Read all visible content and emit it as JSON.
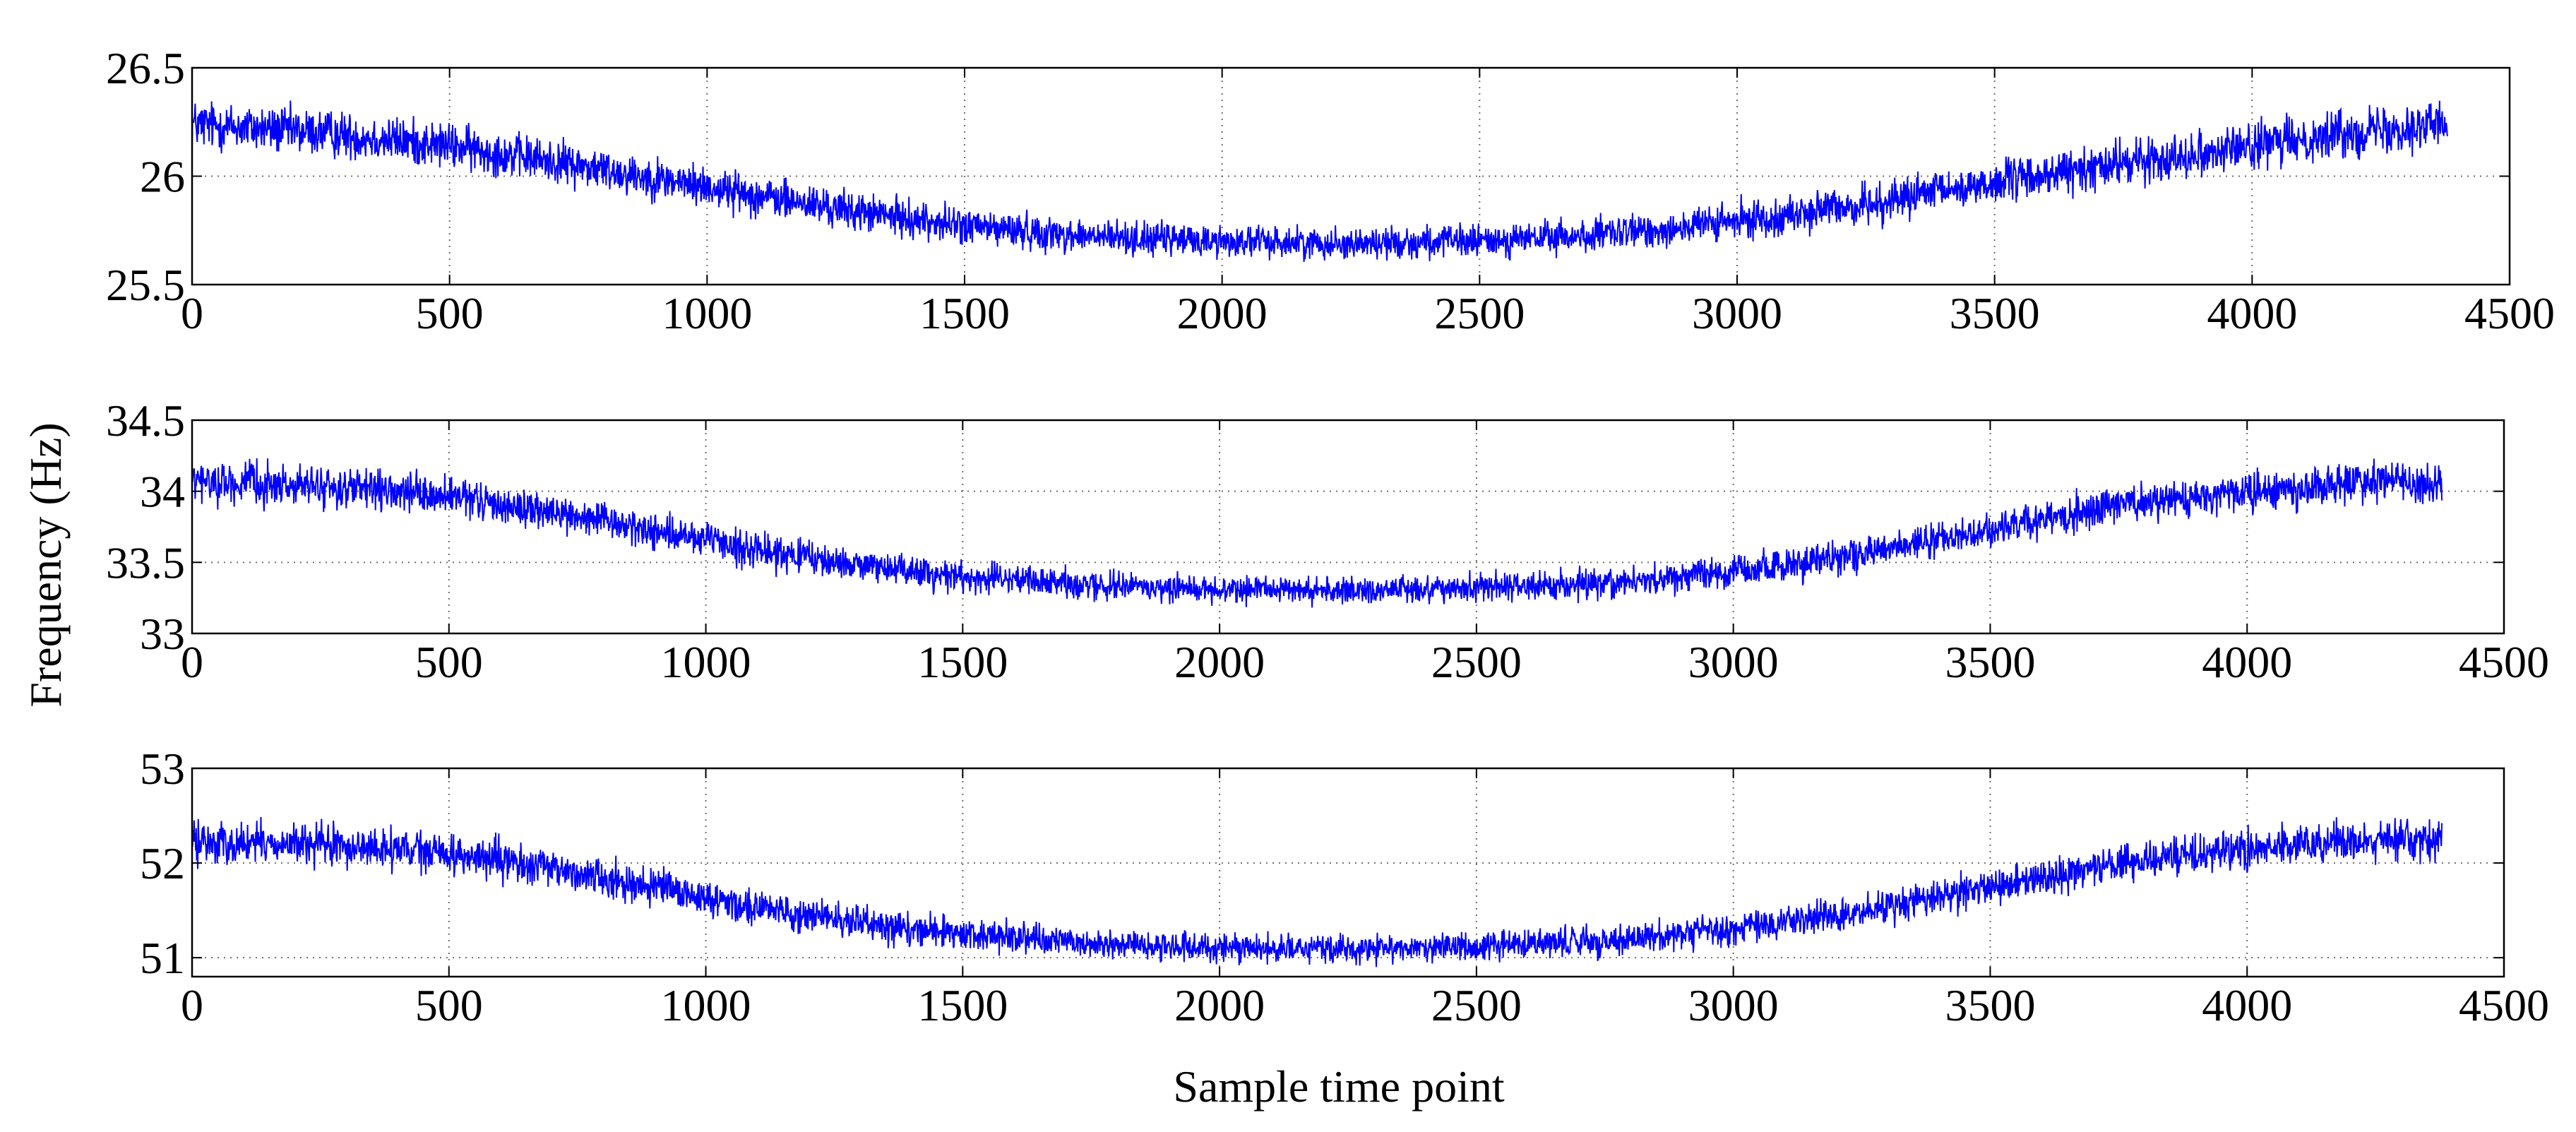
{
  "figure": {
    "ylabel": "Frequency (Hz)",
    "xlabel": "Sample time point",
    "line_color": "#0000ff",
    "grid_color": "#6e6e6e"
  },
  "chart_data": [
    {
      "type": "line",
      "title": "",
      "xlabel": "",
      "ylabel": "",
      "xlim": [
        0,
        4500
      ],
      "ylim": [
        25.5,
        26.5
      ],
      "xticks": [
        0,
        500,
        1000,
        1500,
        2000,
        2500,
        3000,
        3500,
        4000,
        4500
      ],
      "yticks": [
        25.5,
        26,
        26.5
      ],
      "ytick_labels": [
        "25.5",
        "26",
        "26.5"
      ],
      "grid": true,
      "noise_amplitude": 0.07,
      "trend": {
        "x": [
          0,
          250,
          500,
          750,
          1000,
          1250,
          1500,
          1750,
          2000,
          2250,
          2500,
          2750,
          3000,
          3250,
          3500,
          3750,
          4000,
          4250,
          4380
        ],
        "y": [
          26.24,
          26.2,
          26.14,
          26.05,
          25.95,
          25.85,
          25.77,
          25.72,
          25.7,
          25.69,
          25.7,
          25.73,
          25.79,
          25.87,
          25.97,
          26.06,
          26.14,
          26.22,
          26.24
        ]
      },
      "series": [
        {
          "name": "Frequency",
          "n_samples": 4380
        }
      ]
    },
    {
      "type": "line",
      "title": "",
      "xlabel": "",
      "ylabel": "",
      "xlim": [
        0,
        4500
      ],
      "ylim": [
        33,
        34.5
      ],
      "xticks": [
        0,
        500,
        1000,
        1500,
        2000,
        2500,
        3000,
        3500,
        4000,
        4500
      ],
      "yticks": [
        33,
        33.5,
        34,
        34.5
      ],
      "ytick_labels": [
        "33",
        "33.5",
        "34",
        "34.5"
      ],
      "grid": true,
      "noise_amplitude": 0.09,
      "trend": {
        "x": [
          0,
          250,
          500,
          750,
          1000,
          1250,
          1500,
          1750,
          2000,
          2250,
          2500,
          2750,
          3000,
          3250,
          3500,
          3750,
          4000,
          4250,
          4380
        ],
        "y": [
          34.07,
          34.03,
          33.96,
          33.82,
          33.65,
          33.5,
          33.4,
          33.34,
          33.31,
          33.3,
          33.32,
          33.35,
          33.43,
          33.56,
          33.74,
          33.9,
          34.0,
          34.06,
          34.05
        ]
      },
      "series": [
        {
          "name": "Frequency",
          "n_samples": 4380
        }
      ]
    },
    {
      "type": "line",
      "title": "",
      "xlabel": "",
      "ylabel": "",
      "xlim": [
        0,
        4500
      ],
      "ylim": [
        50.8,
        53
      ],
      "xticks": [
        0,
        500,
        1000,
        1500,
        2000,
        2500,
        3000,
        3500,
        4000,
        4500
      ],
      "yticks": [
        51,
        52,
        53
      ],
      "ytick_labels": [
        "51",
        "52",
        "53"
      ],
      "grid": true,
      "noise_amplitude": 0.14,
      "trend": {
        "x": [
          0,
          250,
          500,
          750,
          1000,
          1250,
          1500,
          1750,
          2000,
          2250,
          2500,
          2750,
          3000,
          3250,
          3500,
          3750,
          4000,
          4250,
          4380
        ],
        "y": [
          52.22,
          52.19,
          52.1,
          51.9,
          51.63,
          51.4,
          51.25,
          51.15,
          51.1,
          51.09,
          51.12,
          51.18,
          51.3,
          51.5,
          51.75,
          51.98,
          52.15,
          52.25,
          52.22
        ]
      },
      "series": [
        {
          "name": "Frequency",
          "n_samples": 4380
        }
      ]
    }
  ]
}
